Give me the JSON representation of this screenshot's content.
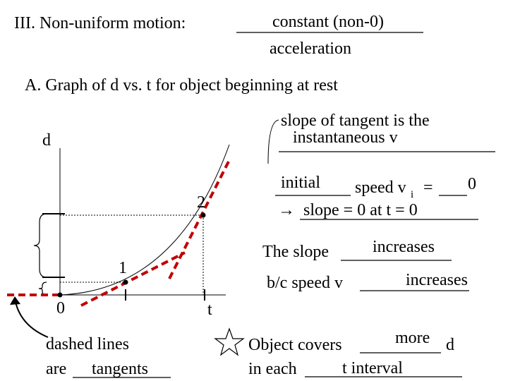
{
  "header": {
    "prefix": "III.  Non-uniform motion:",
    "answer_top": "constant (non-0)",
    "answer_bottom": "acceleration"
  },
  "section": "A.  Graph of d vs. t for object beginning at rest",
  "graph": {
    "y_label": "d",
    "x_label": "t",
    "origin": "0",
    "point_1": "1",
    "point_2": "2"
  },
  "tangent_note": {
    "line_1": "slope of tangent is the",
    "line_2": "instantaneous v"
  },
  "initial_note": {
    "answer_1": "initial",
    "text": "speed v",
    "subscript": "i",
    "equals": "=",
    "answer_2": "0",
    "arrow": "→",
    "line_2": "slope = 0 at t = 0"
  },
  "slope_note": {
    "text_1": "The slope",
    "answer_1": "increases",
    "text_2": "b/c speed v",
    "answer_2": "increases"
  },
  "dashed_note": {
    "line_1": "dashed lines",
    "prefix": "are",
    "answer": "tangents"
  },
  "object_note": {
    "text_1": "Object covers",
    "answer_1": "more",
    "suffix_1": "d",
    "text_2": "in each",
    "answer_2": "t interval"
  }
}
